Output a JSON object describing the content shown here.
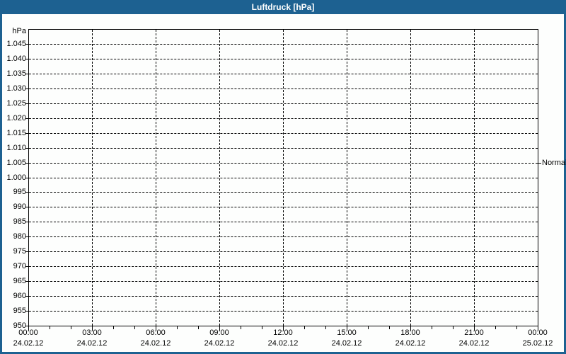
{
  "title": "Luftdruck [hPa]",
  "colors": {
    "frame_blue": "#1d6191",
    "background": "#fdfefd",
    "grid": "#000000",
    "text": "#000000",
    "title_text": "#ffffff"
  },
  "chart_data": {
    "type": "line",
    "title": "Luftdruck [hPa]",
    "grid": "dashed",
    "series": [],
    "y_axis": {
      "unit": "hPa",
      "min": 950,
      "max": 1050,
      "step": 5,
      "ticks": [
        {
          "label": "1.045",
          "value": 1045
        },
        {
          "label": "1.040",
          "value": 1040
        },
        {
          "label": "1.035",
          "value": 1035
        },
        {
          "label": "1.030",
          "value": 1030
        },
        {
          "label": "1.025",
          "value": 1025
        },
        {
          "label": "1.020",
          "value": 1020
        },
        {
          "label": "1.015",
          "value": 1015
        },
        {
          "label": "1.010",
          "value": 1010
        },
        {
          "label": "1.005",
          "value": 1005
        },
        {
          "label": "1.000",
          "value": 1000
        },
        {
          "label": "995",
          "value": 995
        },
        {
          "label": "990",
          "value": 990
        },
        {
          "label": "985",
          "value": 985
        },
        {
          "label": "980",
          "value": 980
        },
        {
          "label": "975",
          "value": 975
        },
        {
          "label": "970",
          "value": 970
        },
        {
          "label": "965",
          "value": 965
        },
        {
          "label": "960",
          "value": 960
        },
        {
          "label": "955",
          "value": 955
        },
        {
          "label": "950",
          "value": 950
        }
      ]
    },
    "x_axis": {
      "major_interval_hours": 3,
      "minor_interval_hours": 1,
      "ticks": [
        {
          "time": "00:00",
          "date": "24.02.12"
        },
        {
          "time": "03:00",
          "date": "24.02.12"
        },
        {
          "time": "06:00",
          "date": "24.02.12"
        },
        {
          "time": "09:00",
          "date": "24.02.12"
        },
        {
          "time": "12:00",
          "date": "24.02.12"
        },
        {
          "time": "15:00",
          "date": "24.02.12"
        },
        {
          "time": "18:00",
          "date": "24.02.12"
        },
        {
          "time": "21:00",
          "date": "24.02.12"
        },
        {
          "time": "00:00",
          "date": "25.02.12"
        }
      ]
    },
    "annotations": [
      {
        "label": "Normal",
        "value": 1005,
        "side": "right"
      }
    ]
  }
}
